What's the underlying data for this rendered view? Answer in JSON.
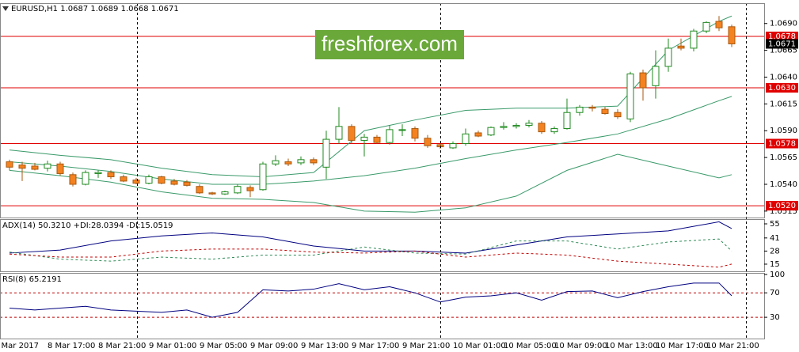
{
  "chart_data": [
    {
      "type": "candlestick",
      "title": "EURUSD,H1",
      "watermark": "freshforex.com",
      "categories": [
        "7 Mar 2017",
        null,
        null,
        "8 Mar 17:00",
        null,
        null,
        null,
        "8 Mar 21:00",
        null,
        null,
        null,
        "9 Mar 01:00",
        null,
        null,
        null,
        "9 Mar 05:00",
        null,
        null,
        null,
        "9 Mar 09:00",
        null,
        null,
        null,
        "9 Mar 13:00",
        null,
        null,
        null,
        "9 Mar 17:00",
        null,
        null,
        null,
        "9 Mar 21:00",
        null,
        null,
        null,
        "10 Mar 01:00",
        null,
        null,
        null,
        "10 Mar 05:00",
        null,
        null,
        null,
        "10 Mar 09:00",
        null,
        null,
        null,
        "10 Mar 13:00",
        null,
        null,
        null,
        "10 Mar 17:00",
        null,
        null,
        null,
        "10 Mar 21:00",
        null,
        null
      ],
      "open": [
        1.0561,
        1.0558,
        1.0557,
        1.0555,
        1.0559,
        1.0549,
        1.054,
        1.055,
        1.0551,
        1.0547,
        1.0544,
        1.0541,
        1.0547,
        1.0543,
        1.0542,
        1.0538,
        1.0532,
        1.0531,
        1.0532,
        1.0537,
        1.0535,
        1.0559,
        1.0561,
        1.056,
        1.0563,
        1.0556,
        1.0582,
        1.0594,
        1.0581,
        1.0584,
        1.0579,
        1.0591,
        1.0592,
        1.0583,
        1.0577,
        1.0574,
        1.0578,
        1.0588,
        1.0586,
        1.0593,
        1.0594,
        1.0595,
        1.0597,
        1.0589,
        1.0592,
        1.0607,
        1.0612,
        1.061,
        1.0607,
        1.0601,
        1.0644,
        1.0632,
        1.065,
        1.0669,
        1.0667,
        1.0683,
        1.0692,
        1.0687
      ],
      "high": [
        1.0563,
        1.0561,
        1.056,
        1.0562,
        1.0561,
        1.0551,
        1.0553,
        1.0553,
        1.0553,
        1.0549,
        1.0546,
        1.0549,
        1.0548,
        1.0545,
        1.0544,
        1.054,
        1.0533,
        1.0534,
        1.054,
        1.0539,
        1.0561,
        1.0567,
        1.0564,
        1.0566,
        1.0565,
        1.059,
        1.0612,
        1.0596,
        1.0587,
        1.0586,
        1.0595,
        1.0596,
        1.0594,
        1.0586,
        1.0578,
        1.058,
        1.0592,
        1.059,
        1.0594,
        1.0598,
        1.0597,
        1.06,
        1.0599,
        1.0594,
        1.062,
        1.0614,
        1.0614,
        1.0612,
        1.061,
        1.0645,
        1.0647,
        1.0665,
        1.0676,
        1.0676,
        1.0685,
        1.0692,
        1.0697,
        1.0689
      ],
      "low": [
        1.0553,
        1.0543,
        1.0553,
        1.0552,
        1.0548,
        1.0538,
        1.0539,
        1.0546,
        1.0545,
        1.0542,
        1.054,
        1.054,
        1.054,
        1.0539,
        1.0538,
        1.0531,
        1.053,
        1.053,
        1.0531,
        1.0528,
        1.0534,
        1.0557,
        1.0557,
        1.0558,
        1.0558,
        1.0545,
        1.0578,
        1.0578,
        1.0566,
        1.0578,
        1.0577,
        1.0585,
        1.058,
        1.0574,
        1.0573,
        1.0573,
        1.0576,
        1.0584,
        1.0585,
        1.0591,
        1.0592,
        1.0593,
        1.0587,
        1.0587,
        1.0591,
        1.0604,
        1.0608,
        1.0605,
        1.0601,
        1.0598,
        1.0618,
        1.062,
        1.0645,
        1.0665,
        1.0664,
        1.0681,
        1.0683,
        1.0668
      ],
      "close": [
        1.0556,
        1.0555,
        1.0554,
        1.0559,
        1.055,
        1.054,
        1.0551,
        1.0551,
        1.0547,
        1.0543,
        1.0541,
        1.0547,
        1.0541,
        1.054,
        1.0539,
        1.0532,
        1.0531,
        1.0533,
        1.0538,
        1.0534,
        1.0559,
        1.0562,
        1.0559,
        1.0563,
        1.056,
        1.0582,
        1.0594,
        1.0581,
        1.0584,
        1.0579,
        1.0591,
        1.0591,
        1.0583,
        1.0576,
        1.0575,
        1.0578,
        1.0587,
        1.0585,
        1.0593,
        1.0594,
        1.0595,
        1.0597,
        1.0589,
        1.0592,
        1.0607,
        1.0612,
        1.0611,
        1.0606,
        1.0603,
        1.0643,
        1.063,
        1.065,
        1.0667,
        1.0667,
        1.0683,
        1.0691,
        1.0686,
        1.0671
      ],
      "up_color": "#ffffff",
      "up_border": "#1f8a1f",
      "down_color": "#f58220",
      "down_border": "#a85a10",
      "series": [
        {
          "color": "#3a9a6a",
          "x": [
            0,
            4,
            8,
            12,
            16,
            20,
            24,
            28,
            32,
            36,
            40,
            44,
            48,
            52,
            56,
            57
          ],
          "values": [
            1.0572,
            1.0567,
            1.0563,
            1.0555,
            1.0549,
            1.0547,
            1.0551,
            1.059,
            1.06,
            1.0609,
            1.0611,
            1.0611,
            1.0613,
            1.0665,
            1.0692,
            1.0697
          ]
        },
        {
          "color": "#3a9a6a",
          "x": [
            0,
            4,
            8,
            12,
            16,
            20,
            24,
            28,
            32,
            36,
            40,
            44,
            48,
            52,
            56,
            57
          ],
          "values": [
            1.0561,
            1.0557,
            1.0552,
            1.0545,
            1.054,
            1.054,
            1.0543,
            1.0548,
            1.0555,
            1.0564,
            1.0572,
            1.0579,
            1.0587,
            1.0601,
            1.0618,
            1.0622
          ]
        },
        {
          "color": "#3a9a6a",
          "x": [
            0,
            4,
            8,
            12,
            16,
            20,
            24,
            28,
            32,
            36,
            40,
            44,
            48,
            52,
            56,
            57
          ],
          "values": [
            1.0553,
            1.0548,
            1.0542,
            1.0533,
            1.0527,
            1.0526,
            1.0523,
            1.0515,
            1.0514,
            1.0518,
            1.0529,
            1.0553,
            1.0568,
            1.0557,
            1.0546,
            1.0549
          ]
        }
      ],
      "ylim": [
        1.0509,
        1.0709
      ],
      "yticks": [
        {
          "value": 1.069,
          "label": "1.0690"
        },
        1.0665,
        {
          "value": 1.064,
          "label": "1.0640"
        },
        1.0615,
        {
          "value": 1.059,
          "label": "1.0590"
        },
        1.0565,
        {
          "value": 1.054,
          "label": "1.0540"
        },
        1.0515
      ],
      "levels": [
        1.0678,
        {
          "value": 1.063,
          "label": "1.0630"
        },
        1.0578,
        {
          "value": 1.052,
          "label": "1.0520"
        }
      ],
      "level_color": "#e00000",
      "last_price": 1.0671
    },
    {
      "type": "line",
      "title": "ADX(14) 50.3210 +DI:28.0394 -DI:15.0519",
      "series": [
        {
          "color": "#000080",
          "dashed": false,
          "x": [
            0,
            4,
            8,
            12,
            16,
            20,
            24,
            28,
            32,
            36,
            40,
            44,
            48,
            52,
            56,
            57
          ],
          "values": [
            26,
            29,
            38,
            43,
            46,
            42,
            33,
            28,
            28,
            26,
            34,
            42,
            45,
            48,
            57,
            50.321
          ]
        },
        {
          "color": "#2e8b57",
          "dashed": true,
          "x": [
            0,
            4,
            8,
            12,
            16,
            20,
            24,
            28,
            32,
            36,
            40,
            44,
            48,
            52,
            56,
            57
          ],
          "values": [
            27,
            20,
            18,
            22,
            20,
            24,
            24,
            32,
            26,
            25,
            38,
            38,
            30,
            37,
            40,
            28.0394
          ]
        },
        {
          "color": "#c00000",
          "dashed": true,
          "x": [
            0,
            4,
            8,
            12,
            16,
            20,
            24,
            28,
            32,
            36,
            40,
            44,
            48,
            52,
            56,
            57
          ],
          "values": [
            25,
            22,
            22,
            28,
            30,
            30,
            27,
            26,
            28,
            22,
            26,
            24,
            18,
            15,
            12,
            15.0519
          ]
        }
      ],
      "ylim": [
        7.9,
        59.7
      ],
      "yticks": [
        15,
        28,
        41,
        55
      ]
    },
    {
      "type": "line",
      "title": "RSI(8) 65.2191",
      "series": [
        {
          "color": "#000080",
          "dashed": false,
          "x": [
            0,
            2,
            4,
            6,
            8,
            10,
            12,
            14,
            16,
            18,
            20,
            22,
            24,
            26,
            28,
            30,
            32,
            34,
            36,
            38,
            40,
            42,
            44,
            46,
            48,
            50,
            52,
            54,
            56,
            57
          ],
          "values": [
            45,
            42,
            45,
            48,
            42,
            40,
            38,
            42,
            30,
            38,
            75,
            73,
            76,
            85,
            75,
            80,
            70,
            55,
            63,
            65,
            70,
            58,
            72,
            73,
            62,
            72,
            80,
            86,
            86,
            65.2191
          ]
        }
      ],
      "ylim": [
        -4.8,
        102.6
      ],
      "yticks": [
        30,
        70,
        100
      ],
      "levels": [
        30,
        70
      ],
      "level_color": "#c00000"
    }
  ]
}
